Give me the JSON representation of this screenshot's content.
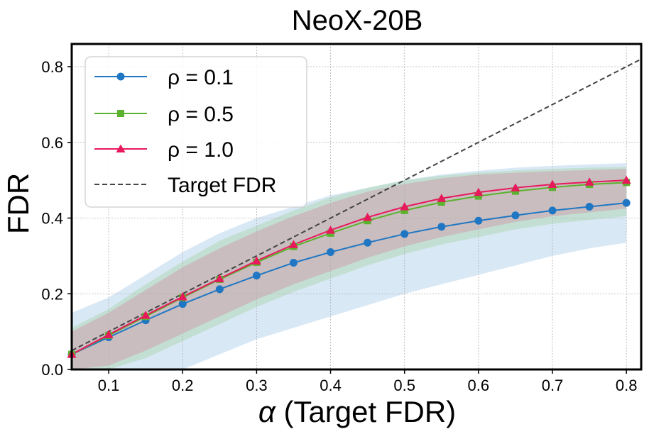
{
  "chart_data": {
    "type": "line",
    "title": "NeoX-20B",
    "xlabel_symbol": "α",
    "xlabel": " (Target FDR)",
    "ylabel": "FDR",
    "xlim": [
      0.05,
      0.82
    ],
    "ylim": [
      0.0,
      0.86
    ],
    "xticks": [
      0.1,
      0.2,
      0.3,
      0.4,
      0.5,
      0.6,
      0.7,
      0.8
    ],
    "xtick_labels": [
      "0.1",
      "0.2",
      "0.3",
      "0.4",
      "0.5",
      "0.6",
      "0.7",
      "0.8"
    ],
    "yticks": [
      0.0,
      0.2,
      0.4,
      0.6,
      0.8
    ],
    "ytick_labels": [
      "0.0",
      "0.2",
      "0.4",
      "0.6",
      "0.8"
    ],
    "grid": true,
    "legend_position": "top-left",
    "x": [
      0.05,
      0.1,
      0.15,
      0.2,
      0.25,
      0.3,
      0.35,
      0.4,
      0.45,
      0.5,
      0.55,
      0.6,
      0.65,
      0.7,
      0.75,
      0.8
    ],
    "series": [
      {
        "name": "ρ = 0.1",
        "color": "#1f77c4",
        "marker": "circle",
        "values": [
          0.04,
          0.085,
          0.13,
          0.173,
          0.212,
          0.248,
          0.282,
          0.31,
          0.335,
          0.358,
          0.377,
          0.393,
          0.407,
          0.42,
          0.43,
          0.44
        ],
        "lower": [
          0.0,
          0.0,
          0.0,
          0.0,
          0.04,
          0.08,
          0.11,
          0.14,
          0.17,
          0.2,
          0.225,
          0.25,
          0.275,
          0.3,
          0.32,
          0.335
        ],
        "upper": [
          0.15,
          0.19,
          0.25,
          0.31,
          0.36,
          0.4,
          0.43,
          0.46,
          0.48,
          0.5,
          0.515,
          0.525,
          0.533,
          0.538,
          0.542,
          0.545
        ]
      },
      {
        "name": "ρ = 0.5",
        "color": "#5bb22e",
        "marker": "square",
        "values": [
          0.04,
          0.09,
          0.14,
          0.19,
          0.238,
          0.283,
          0.325,
          0.36,
          0.393,
          0.42,
          0.442,
          0.458,
          0.471,
          0.481,
          0.489,
          0.494
        ],
        "lower": [
          0.0,
          0.0,
          0.03,
          0.075,
          0.12,
          0.165,
          0.205,
          0.24,
          0.275,
          0.305,
          0.33,
          0.35,
          0.37,
          0.385,
          0.395,
          0.405
        ],
        "upper": [
          0.11,
          0.16,
          0.225,
          0.285,
          0.34,
          0.38,
          0.42,
          0.455,
          0.48,
          0.5,
          0.512,
          0.52,
          0.526,
          0.53,
          0.533,
          0.535
        ]
      },
      {
        "name": "ρ = 1.0",
        "color": "#e8185c",
        "marker": "triangle",
        "values": [
          0.04,
          0.092,
          0.143,
          0.192,
          0.24,
          0.287,
          0.33,
          0.368,
          0.402,
          0.43,
          0.452,
          0.468,
          0.48,
          0.489,
          0.495,
          0.5
        ],
        "lower": [
          0.0,
          0.01,
          0.05,
          0.095,
          0.14,
          0.185,
          0.225,
          0.26,
          0.295,
          0.325,
          0.35,
          0.37,
          0.39,
          0.405,
          0.415,
          0.425
        ],
        "upper": [
          0.1,
          0.15,
          0.21,
          0.27,
          0.32,
          0.365,
          0.405,
          0.44,
          0.47,
          0.49,
          0.505,
          0.515,
          0.52,
          0.524,
          0.527,
          0.53
        ]
      },
      {
        "name": "Target FDR",
        "color": "#444444",
        "style": "dashed",
        "x": [
          0.05,
          0.82
        ],
        "values": [
          0.05,
          0.82
        ]
      }
    ]
  }
}
